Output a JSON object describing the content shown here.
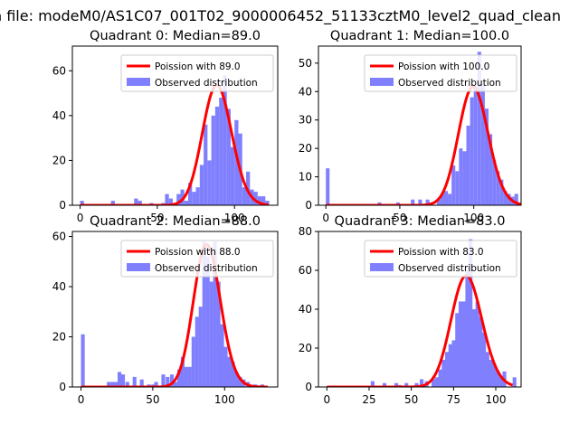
{
  "figure": {
    "suptitle": "n file: modeM0/AS1C07_001T02_9000006452_51133cztM0_level2_quad_clean"
  },
  "chart_data": [
    {
      "type": "bar",
      "title": "Quadrant 0: Median=89.0",
      "xlim": [
        -5,
        128
      ],
      "ylim": [
        0,
        71
      ],
      "xticks": [
        0,
        50,
        100
      ],
      "yticks": [
        0,
        20,
        40,
        60
      ],
      "legend_placement": "top-right",
      "legend": [
        "Poission with 89.0",
        "Observed distribution"
      ],
      "bar_color": "#8080ff",
      "line_color": "#ff0000",
      "bin_width": 2.5,
      "series": [
        {
          "name": "Poission with 89.0",
          "kind": "line",
          "lambda": 89.0,
          "x_range": [
            0,
            122
          ]
        },
        {
          "name": "Observed distribution",
          "kind": "hist",
          "bins": [
            [
              0,
              2
            ],
            [
              20,
              2
            ],
            [
              35,
              3
            ],
            [
              37.5,
              2
            ],
            [
              45,
              1
            ],
            [
              52.5,
              1
            ],
            [
              55,
              5
            ],
            [
              57.5,
              3
            ],
            [
              60,
              1
            ],
            [
              62.5,
              5
            ],
            [
              65,
              7
            ],
            [
              67.5,
              2
            ],
            [
              70,
              10
            ],
            [
              72.5,
              6
            ],
            [
              75,
              8
            ],
            [
              77.5,
              18
            ],
            [
              80,
              36
            ],
            [
              82.5,
              20
            ],
            [
              85,
              40
            ],
            [
              87.5,
              44
            ],
            [
              90,
              48
            ],
            [
              92.5,
              58
            ],
            [
              95,
              43
            ],
            [
              97.5,
              26
            ],
            [
              100,
              38
            ],
            [
              102.5,
              32
            ],
            [
              105,
              8
            ],
            [
              107.5,
              15
            ],
            [
              110,
              7
            ],
            [
              112.5,
              6
            ],
            [
              115,
              4
            ],
            [
              117.5,
              4
            ],
            [
              120,
              2
            ]
          ]
        }
      ]
    },
    {
      "type": "bar",
      "title": "Quadrant 1: Median=100.0",
      "xlim": [
        -5,
        132
      ],
      "ylim": [
        0,
        56
      ],
      "xticks": [
        0,
        50,
        100
      ],
      "yticks": [
        0,
        10,
        20,
        30,
        40,
        50
      ],
      "legend_placement": "top-right",
      "legend": [
        "Poission with 100.0",
        "Observed distribution"
      ],
      "bar_color": "#8080ff",
      "line_color": "#ff0000",
      "bin_width": 2.5,
      "series": [
        {
          "name": "Poission with 100.0",
          "kind": "line",
          "lambda": 100.0,
          "x_range": [
            0,
            132
          ]
        },
        {
          "name": "Observed distribution",
          "kind": "hist",
          "bins": [
            [
              0,
              13
            ],
            [
              35,
              1
            ],
            [
              47.5,
              1
            ],
            [
              57.5,
              2
            ],
            [
              62.5,
              2
            ],
            [
              67.5,
              2
            ],
            [
              70,
              1
            ],
            [
              75,
              2
            ],
            [
              77.5,
              4
            ],
            [
              80,
              5
            ],
            [
              82.5,
              4
            ],
            [
              85,
              14
            ],
            [
              87.5,
              12
            ],
            [
              90,
              20
            ],
            [
              92.5,
              19
            ],
            [
              95,
              28
            ],
            [
              97.5,
              38
            ],
            [
              100,
              42
            ],
            [
              102.5,
              54
            ],
            [
              105,
              42
            ],
            [
              107.5,
              34
            ],
            [
              110,
              25
            ],
            [
              112.5,
              16
            ],
            [
              115,
              12
            ],
            [
              117.5,
              9
            ],
            [
              120,
              5
            ],
            [
              122.5,
              4
            ],
            [
              125,
              3
            ],
            [
              127.5,
              4
            ]
          ]
        }
      ]
    },
    {
      "type": "bar",
      "title": "Quadrant 2: Median=88.0",
      "xlim": [
        -6,
        137
      ],
      "ylim": [
        0,
        62
      ],
      "xticks": [
        0,
        50,
        100
      ],
      "yticks": [
        0,
        20,
        40,
        60
      ],
      "legend_placement": "top-right",
      "legend": [
        "Poission with 88.0",
        "Observed distribution"
      ],
      "bar_color": "#8080ff",
      "line_color": "#ff0000",
      "bin_width": 2.6,
      "series": [
        {
          "name": "Poission with 88.0",
          "kind": "line",
          "lambda": 88.0,
          "x_range": [
            0,
            130
          ]
        },
        {
          "name": "Observed distribution",
          "kind": "hist",
          "bins": [
            [
              0,
              21
            ],
            [
              18,
              2
            ],
            [
              20.5,
              2
            ],
            [
              23,
              2
            ],
            [
              25.5,
              6
            ],
            [
              28,
              5
            ],
            [
              31,
              2
            ],
            [
              36,
              4
            ],
            [
              41,
              3
            ],
            [
              46,
              1
            ],
            [
              49,
              1
            ],
            [
              51,
              2
            ],
            [
              56,
              5
            ],
            [
              59,
              4
            ],
            [
              62,
              5
            ],
            [
              64.5,
              2
            ],
            [
              67,
              7
            ],
            [
              69.5,
              12
            ],
            [
              72,
              8
            ],
            [
              74.5,
              8
            ],
            [
              77,
              20
            ],
            [
              79.5,
              28
            ],
            [
              82,
              32
            ],
            [
              84.5,
              58
            ],
            [
              87,
              52
            ],
            [
              89.5,
              42
            ],
            [
              92,
              58
            ],
            [
              94.5,
              42
            ],
            [
              97,
              25
            ],
            [
              99.5,
              16
            ],
            [
              102,
              12
            ],
            [
              104.5,
              10
            ],
            [
              107,
              6
            ],
            [
              109.5,
              4
            ],
            [
              112,
              3
            ],
            [
              115,
              2
            ],
            [
              120,
              1
            ],
            [
              125,
              1
            ]
          ]
        }
      ]
    },
    {
      "type": "bar",
      "title": "Quadrant 3: Median=83.0",
      "xlim": [
        -5,
        115
      ],
      "ylim": [
        0,
        80
      ],
      "xticks": [
        0,
        25,
        50,
        75,
        100
      ],
      "yticks": [
        0,
        20,
        40,
        60,
        80
      ],
      "legend_placement": "top-right",
      "legend": [
        "Poission with 83.0",
        "Observed distribution"
      ],
      "bar_color": "#8080ff",
      "line_color": "#ff0000",
      "bin_width": 2.2,
      "series": [
        {
          "name": "Poission with 83.0",
          "kind": "line",
          "lambda": 83.0,
          "x_range": [
            0,
            110
          ]
        },
        {
          "name": "Observed distribution",
          "kind": "hist",
          "bins": [
            [
              26,
              3
            ],
            [
              33,
              2
            ],
            [
              40,
              2
            ],
            [
              42,
              1
            ],
            [
              46,
              2
            ],
            [
              52,
              2
            ],
            [
              55,
              4
            ],
            [
              58,
              3
            ],
            [
              62,
              4
            ],
            [
              64,
              5
            ],
            [
              66,
              9
            ],
            [
              68,
              14
            ],
            [
              70,
              18
            ],
            [
              72,
              22
            ],
            [
              74,
              24
            ],
            [
              76,
              38
            ],
            [
              78,
              44
            ],
            [
              80,
              44
            ],
            [
              82,
              60
            ],
            [
              84,
              76
            ],
            [
              86,
              40
            ],
            [
              88,
              44
            ],
            [
              90,
              36
            ],
            [
              92,
              28
            ],
            [
              94,
              18
            ],
            [
              96,
              14
            ],
            [
              98,
              12
            ],
            [
              100,
              8
            ],
            [
              102,
              5
            ],
            [
              104,
              8
            ],
            [
              110,
              5
            ]
          ]
        }
      ]
    }
  ]
}
